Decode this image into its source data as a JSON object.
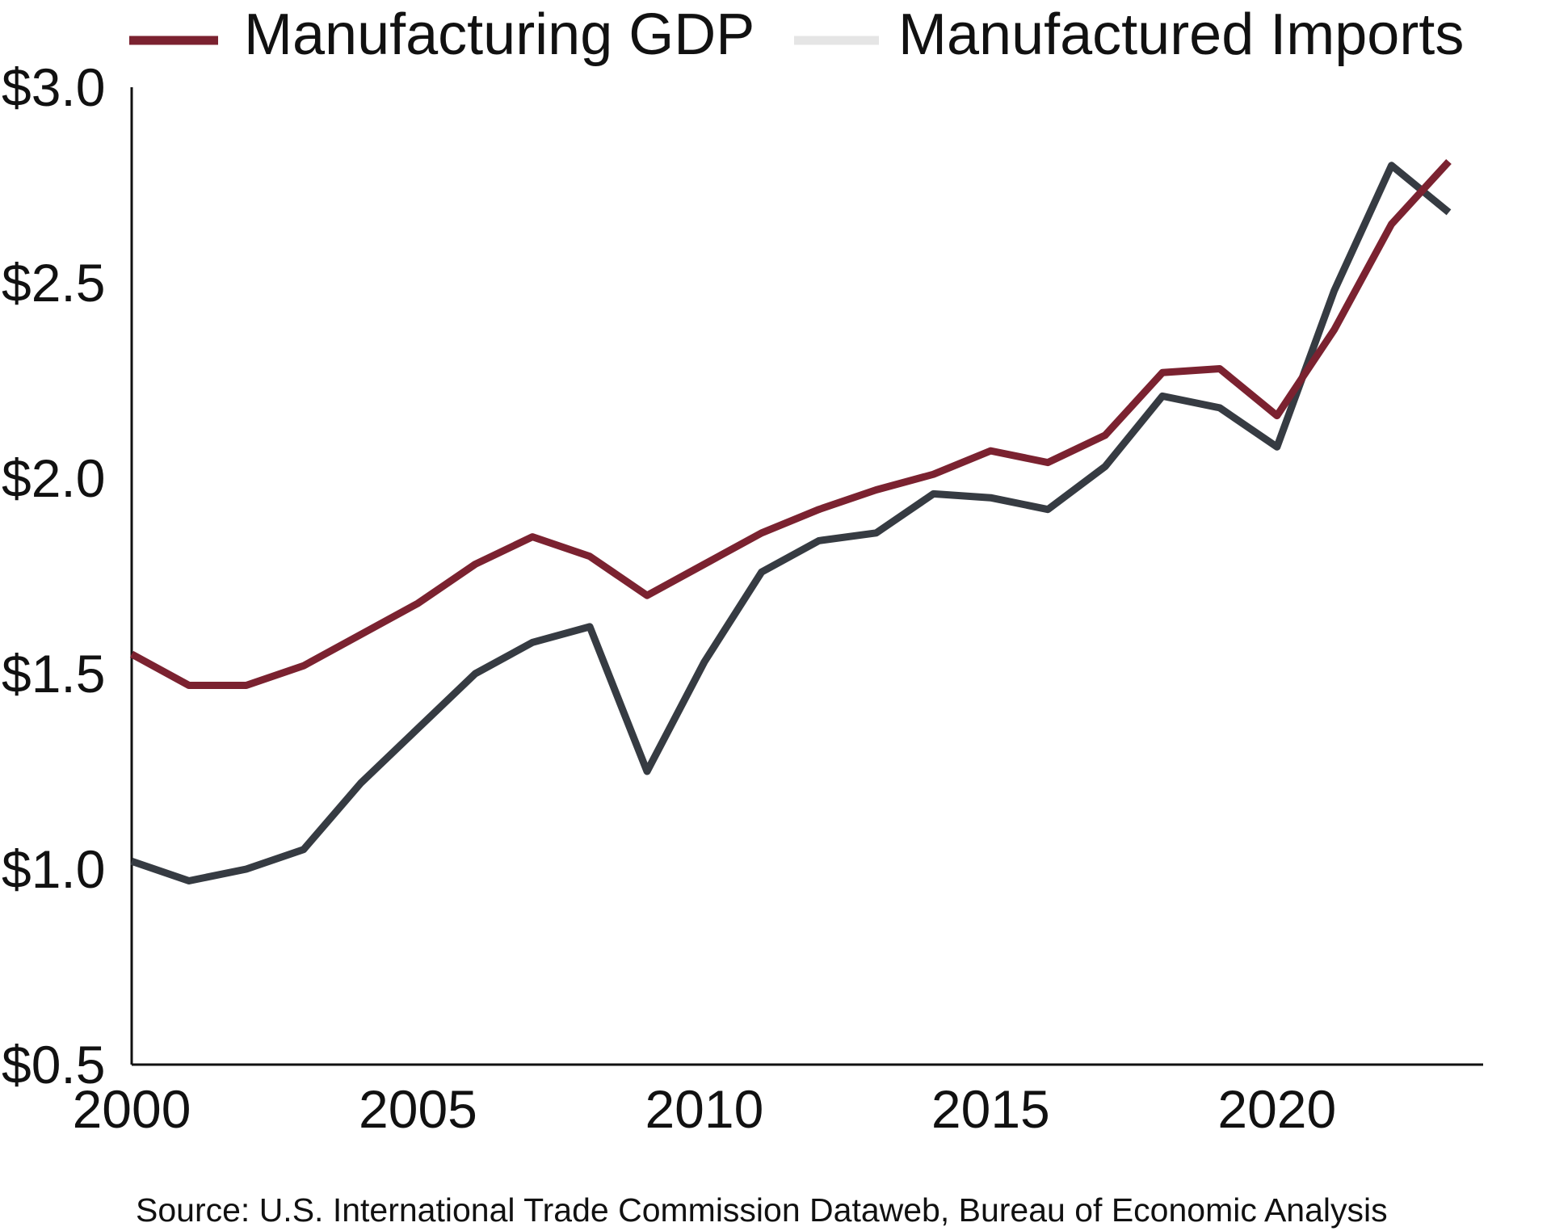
{
  "chart_data": {
    "type": "line",
    "title": "",
    "xlabel": "",
    "ylabel": "",
    "x": [
      2000,
      2001,
      2002,
      2003,
      2004,
      2005,
      2006,
      2007,
      2008,
      2009,
      2010,
      2011,
      2012,
      2013,
      2014,
      2015,
      2016,
      2017,
      2018,
      2019,
      2020,
      2021,
      2022,
      2023
    ],
    "xlim": [
      2000,
      2023.6
    ],
    "ylim": [
      0.5,
      3.0
    ],
    "x_tick_values": [
      2000,
      2005,
      2010,
      2015,
      2020
    ],
    "x_tick_labels": [
      "2000",
      "2005",
      "2010",
      "2015",
      "2020"
    ],
    "y_tick_values": [
      0.5,
      1.0,
      1.5,
      2.0,
      2.5,
      3.0
    ],
    "y_tick_labels": [
      "$0.5",
      "$1.0",
      "$1.5",
      "$2.0",
      "$2.5",
      "$3.0"
    ],
    "grid": false,
    "legend_position": "top",
    "series": [
      {
        "name": "Manufacturing GDP",
        "color": "#7b2230",
        "legend_swatch_color": "#7b2230",
        "values": [
          1.55,
          1.47,
          1.47,
          1.52,
          1.6,
          1.68,
          1.78,
          1.85,
          1.8,
          1.7,
          1.78,
          1.86,
          1.92,
          1.97,
          2.01,
          2.07,
          2.04,
          2.11,
          2.27,
          2.28,
          2.16,
          2.38,
          2.65,
          2.81
        ]
      },
      {
        "name": "Manufactured Imports",
        "color": "#363b42",
        "legend_swatch_color": "#e5e5e5",
        "values": [
          1.02,
          0.97,
          1.0,
          1.05,
          1.22,
          1.36,
          1.5,
          1.58,
          1.62,
          1.25,
          1.53,
          1.76,
          1.84,
          1.86,
          1.96,
          1.95,
          1.92,
          2.03,
          2.21,
          2.18,
          2.08,
          2.48,
          2.8,
          2.68
        ]
      }
    ]
  },
  "legend": {
    "items": [
      "Manufacturing GDP",
      "Manufactured Imports"
    ]
  },
  "source": "Source: U.S. International Trade Commission Dataweb, Bureau of Economic Analysis"
}
